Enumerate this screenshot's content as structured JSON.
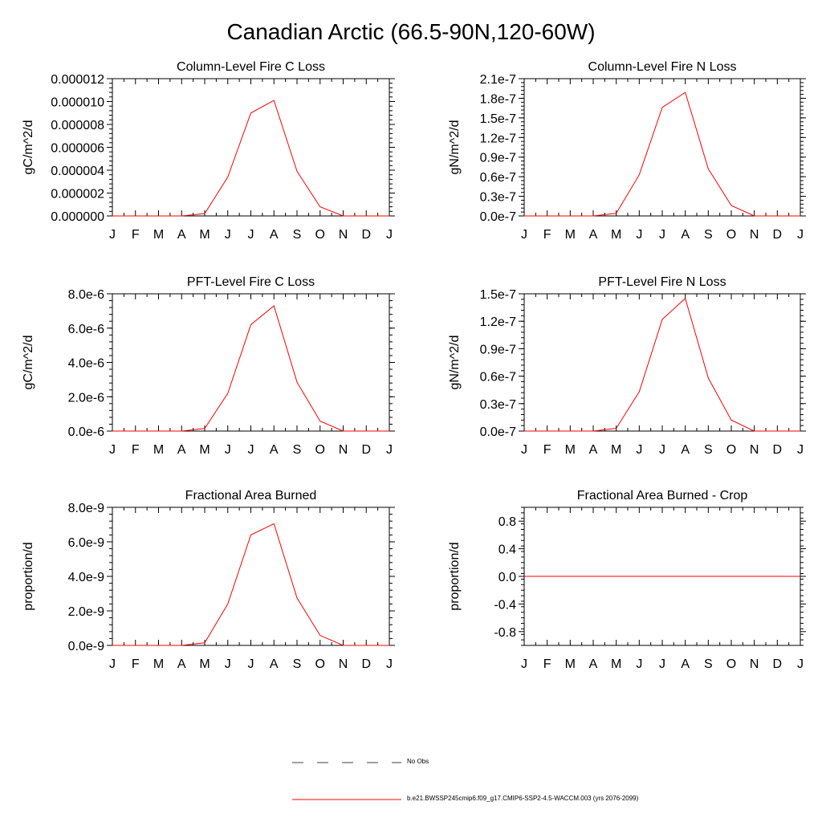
{
  "figure_title": "Canadian Arctic (66.5-90N,120-60W)",
  "legend": {
    "obs_label": "No Obs",
    "model_label": "b.e21.BWSSP245cmip6.f09_g17.CMIP6-SSP2-4.5-WACCM.003 (yrs 2076-2099)",
    "obs_color": "#000000",
    "model_color": "#ff0000"
  },
  "chart_data": [
    {
      "type": "line",
      "title": "Column-Level Fire C Loss",
      "ylabel": "gC/m^2/d",
      "xlabel": "",
      "categories": [
        "J",
        "F",
        "M",
        "A",
        "M",
        "J",
        "J",
        "A",
        "S",
        "O",
        "N",
        "D",
        "J"
      ],
      "ylim": [
        0,
        1.2e-05
      ],
      "yticks": [
        0,
        2e-06,
        4e-06,
        6e-06,
        8e-06,
        1e-05,
        1.2e-05
      ],
      "ytick_labels": [
        "0.000000",
        "0.000002",
        "0.000004",
        "0.000006",
        "0.000008",
        "0.000010",
        "0.000012"
      ],
      "series": [
        {
          "name": "b.e21.BWSSP245cmip6.f09_g17.CMIP6-SSP2-4.5-WACCM.003 (yrs 2076-2099)",
          "color": "#ff0000",
          "values": [
            0,
            0,
            0,
            0,
            2e-07,
            3.4e-06,
            9e-06,
            1.01e-05,
            3.9e-06,
            8e-07,
            0,
            0,
            0
          ]
        }
      ]
    },
    {
      "type": "line",
      "title": "Column-Level Fire N Loss",
      "ylabel": "gN/m^2/d",
      "xlabel": "",
      "categories": [
        "J",
        "F",
        "M",
        "A",
        "M",
        "J",
        "J",
        "A",
        "S",
        "O",
        "N",
        "D",
        "J"
      ],
      "ylim": [
        0,
        2.1e-07
      ],
      "yticks": [
        0,
        3e-08,
        6e-08,
        9e-08,
        1.2e-07,
        1.5e-07,
        1.8e-07,
        2.1e-07
      ],
      "ytick_labels": [
        "0.0e-7",
        "0.3e-7",
        "0.6e-7",
        "0.9e-7",
        "1.2e-7",
        "1.5e-7",
        "1.8e-7",
        "2.1e-7"
      ],
      "series": [
        {
          "name": "b.e21.BWSSP245cmip6.f09_g17.CMIP6-SSP2-4.5-WACCM.003 (yrs 2076-2099)",
          "color": "#ff0000",
          "values": [
            0,
            0,
            0,
            0,
            4e-09,
            6.3e-08,
            1.66e-07,
            1.89e-07,
            7.2e-08,
            1.6e-08,
            0,
            0,
            0
          ]
        }
      ]
    },
    {
      "type": "line",
      "title": "PFT-Level Fire C Loss",
      "ylabel": "gC/m^2/d",
      "xlabel": "",
      "categories": [
        "J",
        "F",
        "M",
        "A",
        "M",
        "J",
        "J",
        "A",
        "S",
        "O",
        "N",
        "D",
        "J"
      ],
      "ylim": [
        0,
        8e-06
      ],
      "yticks": [
        0,
        2e-06,
        4e-06,
        6e-06,
        8e-06
      ],
      "ytick_labels": [
        "0.0e-6",
        "2.0e-6",
        "4.0e-6",
        "6.0e-6",
        "8.0e-6"
      ],
      "series": [
        {
          "name": "b.e21.BWSSP245cmip6.f09_g17.CMIP6-SSP2-4.5-WACCM.003 (yrs 2076-2099)",
          "color": "#ff0000",
          "values": [
            0,
            0,
            0,
            0,
            1.5e-07,
            2.2e-06,
            6.2e-06,
            7.3e-06,
            2.85e-06,
            5.8e-07,
            0,
            0,
            0
          ]
        }
      ]
    },
    {
      "type": "line",
      "title": "PFT-Level Fire N Loss",
      "ylabel": "gN/m^2/d",
      "xlabel": "",
      "categories": [
        "J",
        "F",
        "M",
        "A",
        "M",
        "J",
        "J",
        "A",
        "S",
        "O",
        "N",
        "D",
        "J"
      ],
      "ylim": [
        0,
        1.5e-07
      ],
      "yticks": [
        0,
        3e-08,
        6e-08,
        9e-08,
        1.2e-07,
        1.5e-07
      ],
      "ytick_labels": [
        "0.0e-7",
        "0.3e-7",
        "0.6e-7",
        "0.9e-7",
        "1.2e-7",
        "1.5e-7"
      ],
      "series": [
        {
          "name": "b.e21.BWSSP245cmip6.f09_g17.CMIP6-SSP2-4.5-WACCM.003 (yrs 2076-2099)",
          "color": "#ff0000",
          "values": [
            0,
            0,
            0,
            0,
            3e-09,
            4.3e-08,
            1.22e-07,
            1.45e-07,
            5.8e-08,
            1.2e-08,
            0,
            0,
            0
          ]
        }
      ]
    },
    {
      "type": "line",
      "title": "Fractional Area Burned",
      "ylabel": "proportion/d",
      "xlabel": "",
      "categories": [
        "J",
        "F",
        "M",
        "A",
        "M",
        "J",
        "J",
        "A",
        "S",
        "O",
        "N",
        "D",
        "J"
      ],
      "ylim": [
        0,
        8e-09
      ],
      "yticks": [
        0,
        2e-09,
        4e-09,
        6e-09,
        8e-09
      ],
      "ytick_labels": [
        "0.0e-9",
        "2.0e-9",
        "4.0e-9",
        "6.0e-9",
        "8.0e-9"
      ],
      "series": [
        {
          "name": "b.e21.BWSSP245cmip6.f09_g17.CMIP6-SSP2-4.5-WACCM.003 (yrs 2076-2099)",
          "color": "#ff0000",
          "values": [
            0,
            0,
            0,
            0,
            1.5e-10,
            2.4e-09,
            6.4e-09,
            7.05e-09,
            2.75e-09,
            5.8e-10,
            0,
            0,
            0
          ]
        }
      ]
    },
    {
      "type": "line",
      "title": "Fractional Area Burned - Crop",
      "ylabel": "proportion/d",
      "xlabel": "",
      "categories": [
        "J",
        "F",
        "M",
        "A",
        "M",
        "J",
        "J",
        "A",
        "S",
        "O",
        "N",
        "D",
        "J"
      ],
      "ylim": [
        -1,
        1
      ],
      "yticks": [
        -0.8,
        -0.4,
        0,
        0.4,
        0.8
      ],
      "ytick_labels": [
        "-0.8",
        "-0.4",
        "0.0",
        "0.4",
        "0.8"
      ],
      "series": [
        {
          "name": "b.e21.BWSSP245cmip6.f09_g17.CMIP6-SSP2-4.5-WACCM.003 (yrs 2076-2099)",
          "color": "#ff0000",
          "values": [
            0,
            0,
            0,
            0,
            0,
            0,
            0,
            0,
            0,
            0,
            0,
            0,
            0
          ]
        }
      ]
    }
  ]
}
